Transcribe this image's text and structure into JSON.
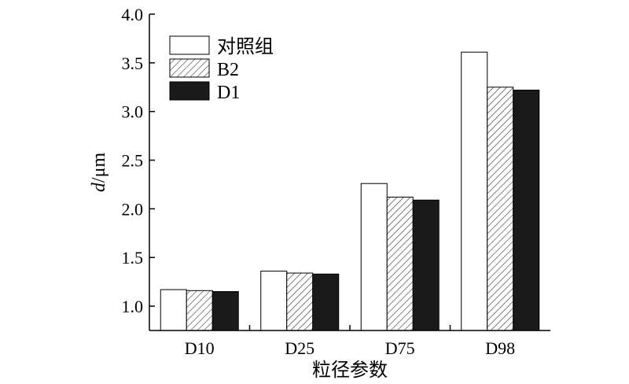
{
  "chart_data": {
    "type": "bar",
    "categories": [
      "D10",
      "D25",
      "D75",
      "D98"
    ],
    "series": [
      {
        "name": "对照组",
        "values": [
          1.17,
          1.36,
          2.26,
          3.61
        ],
        "fill": "#ffffff"
      },
      {
        "name": "B2",
        "values": [
          1.16,
          1.34,
          2.12,
          3.25
        ],
        "fill": "hatch"
      },
      {
        "name": "D1",
        "values": [
          1.15,
          1.33,
          2.09,
          3.22
        ],
        "fill": "#1a1a1a"
      }
    ],
    "xlabel": "粒径参数",
    "ylabel_italic": "d",
    "ylabel_unit": "/μm",
    "ylim": [
      0.75,
      4.0
    ],
    "yticks": [
      "1.0",
      "1.5",
      "2.0",
      "2.5",
      "3.0",
      "3.5",
      "4.0"
    ],
    "ytick_values": [
      1.0,
      1.5,
      2.0,
      2.5,
      3.0,
      3.5,
      4.0
    ],
    "legend_position": "top-left",
    "grid": false
  }
}
